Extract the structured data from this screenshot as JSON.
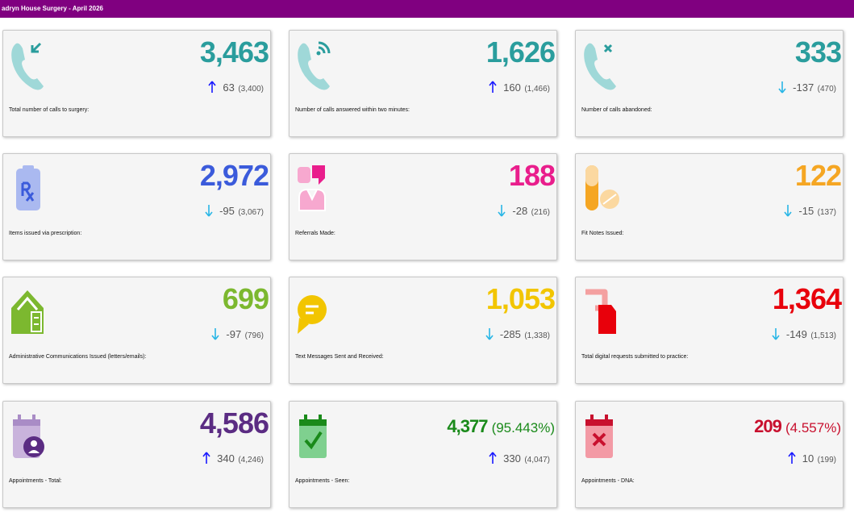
{
  "header": {
    "title": "adryn House Surgery - April 2026"
  },
  "cards": [
    {
      "value": "3,463",
      "change": "63",
      "previous": "(3,400)",
      "label": "Total number of calls to surgery:",
      "color": "#2a9d9d"
    },
    {
      "value": "1,626",
      "change": "160",
      "previous": "(1,466)",
      "label": "Number of calls answered within two minutes:",
      "color": "#2a9d9d"
    },
    {
      "value": "333",
      "change": "-137",
      "previous": "(470)",
      "label": "Number of calls abandoned:",
      "color": "#2a9d9d"
    },
    {
      "value": "2,972",
      "change": "-95",
      "previous": "(3,067)",
      "label": "Items issued via prescription:",
      "color": "#3b5bdb"
    },
    {
      "value": "188",
      "change": "-28",
      "previous": "(216)",
      "label": "Referrals Made:",
      "color": "#e91e8c"
    },
    {
      "value": "122",
      "change": "-15",
      "previous": "(137)",
      "label": "Fit Notes Issued:",
      "color": "#f5a623"
    },
    {
      "value": "699",
      "change": "-97",
      "previous": "(796)",
      "label": "Administrative Communications Issued (letters/emails):",
      "color": "#7cb82f"
    },
    {
      "value": "1,053",
      "change": "-285",
      "previous": "(1,338)",
      "label": "Text Messages Sent and Received:",
      "color": "#f2c500"
    },
    {
      "value": "1,364",
      "change": "-149",
      "previous": "(1,513)",
      "label": "Total digital requests submitted to practice:",
      "color": "#e8000b"
    },
    {
      "value": "4,586",
      "change": "340",
      "previous": "(4,246)",
      "label": "Appointments - Total:",
      "color": "#5b2c83"
    },
    {
      "value": "4,377",
      "percent": "(95.443%)",
      "change": "330",
      "previous": "(4,047)",
      "label": "Appointments - Seen:",
      "color": "#1a8a1a"
    },
    {
      "value": "209",
      "percent": "(4.557%)",
      "change": "10",
      "previous": "(199)",
      "label": "Appointments - DNA:",
      "color": "#c8102e"
    }
  ]
}
